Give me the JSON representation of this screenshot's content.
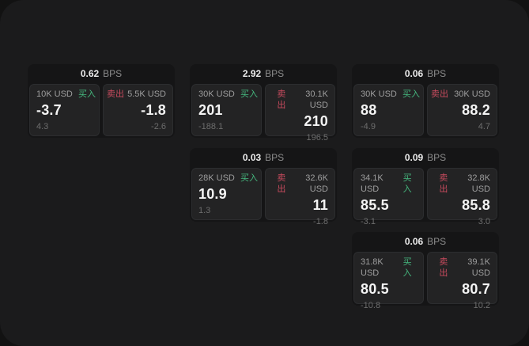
{
  "window": {
    "page_background": "#121212",
    "surface_background": "#1b1b1c"
  },
  "labels": {
    "bps_unit": "BPS",
    "buy": "买入",
    "sell": "卖出"
  },
  "colors": {
    "buy_green": "#45b97f",
    "sell_red": "#c94b5e",
    "price_text": "#f4f4f4",
    "card_background": "#151516",
    "panel_background": "#232324"
  },
  "cards": [
    {
      "col": 0,
      "row": 0,
      "bps": "0.62",
      "buy": {
        "size": "10K USD",
        "price": "-3.7",
        "delta": "4.3"
      },
      "sell": {
        "size": "5.5K USD",
        "price": "-1.8",
        "delta": "-2.6"
      }
    },
    {
      "col": 1,
      "row": 0,
      "bps": "2.92",
      "buy": {
        "size": "30K USD",
        "price": "201",
        "delta": "-188.1"
      },
      "sell": {
        "size": "30.1K USD",
        "price": "210",
        "delta": "196.5"
      }
    },
    {
      "col": 2,
      "row": 0,
      "bps": "0.06",
      "buy": {
        "size": "30K USD",
        "price": "88",
        "delta": "-4.9"
      },
      "sell": {
        "size": "30K USD",
        "price": "88.2",
        "delta": "4.7"
      }
    },
    {
      "col": 1,
      "row": 1,
      "bps": "0.03",
      "buy": {
        "size": "28K USD",
        "price": "10.9",
        "delta": "1.3"
      },
      "sell": {
        "size": "32.6K USD",
        "price": "11",
        "delta": "-1.8"
      }
    },
    {
      "col": 2,
      "row": 1,
      "bps": "0.09",
      "buy": {
        "size": "34.1K USD",
        "price": "85.5",
        "delta": "-3.1"
      },
      "sell": {
        "size": "32.8K USD",
        "price": "85.8",
        "delta": "3.0"
      }
    },
    {
      "col": 2,
      "row": 2,
      "bps": "0.06",
      "buy": {
        "size": "31.8K USD",
        "price": "80.5",
        "delta": "-10.8"
      },
      "sell": {
        "size": "39.1K USD",
        "price": "80.7",
        "delta": "10.2"
      }
    }
  ]
}
